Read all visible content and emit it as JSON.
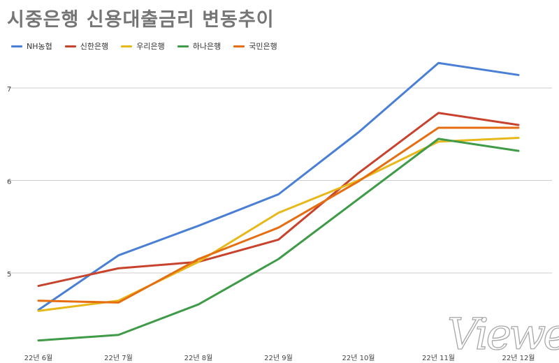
{
  "title": "시중은행 신용대출금리 변동추이",
  "watermark": "Viewers",
  "chart_data": {
    "type": "line",
    "categories": [
      "22년 6월",
      "22년 7월",
      "22년 8월",
      "22년 9월",
      "22년 10월",
      "22년 11월",
      "22년 12월"
    ],
    "ylim": [
      4.3,
      7.4
    ],
    "yticks": [
      5,
      6,
      7
    ],
    "grid": true,
    "legend_position": "top-left",
    "series": [
      {
        "name": "NH농협",
        "color": "#4a7fd6",
        "values": [
          4.6,
          5.19,
          5.51,
          5.85,
          6.52,
          7.27,
          7.14
        ]
      },
      {
        "name": "신한은행",
        "color": "#c8432e",
        "values": [
          4.86,
          5.05,
          5.12,
          5.36,
          6.08,
          6.73,
          6.6
        ]
      },
      {
        "name": "우리은행",
        "color": "#e7b81a",
        "values": [
          4.59,
          4.7,
          5.12,
          5.65,
          6.0,
          6.42,
          6.46
        ]
      },
      {
        "name": "하나은행",
        "color": "#3f9b47",
        "values": [
          4.27,
          4.33,
          4.66,
          5.15,
          5.8,
          6.45,
          6.32
        ]
      },
      {
        "name": "국민은행",
        "color": "#e56e12",
        "values": [
          4.7,
          4.68,
          5.15,
          5.49,
          5.99,
          6.57,
          6.57
        ]
      }
    ]
  }
}
